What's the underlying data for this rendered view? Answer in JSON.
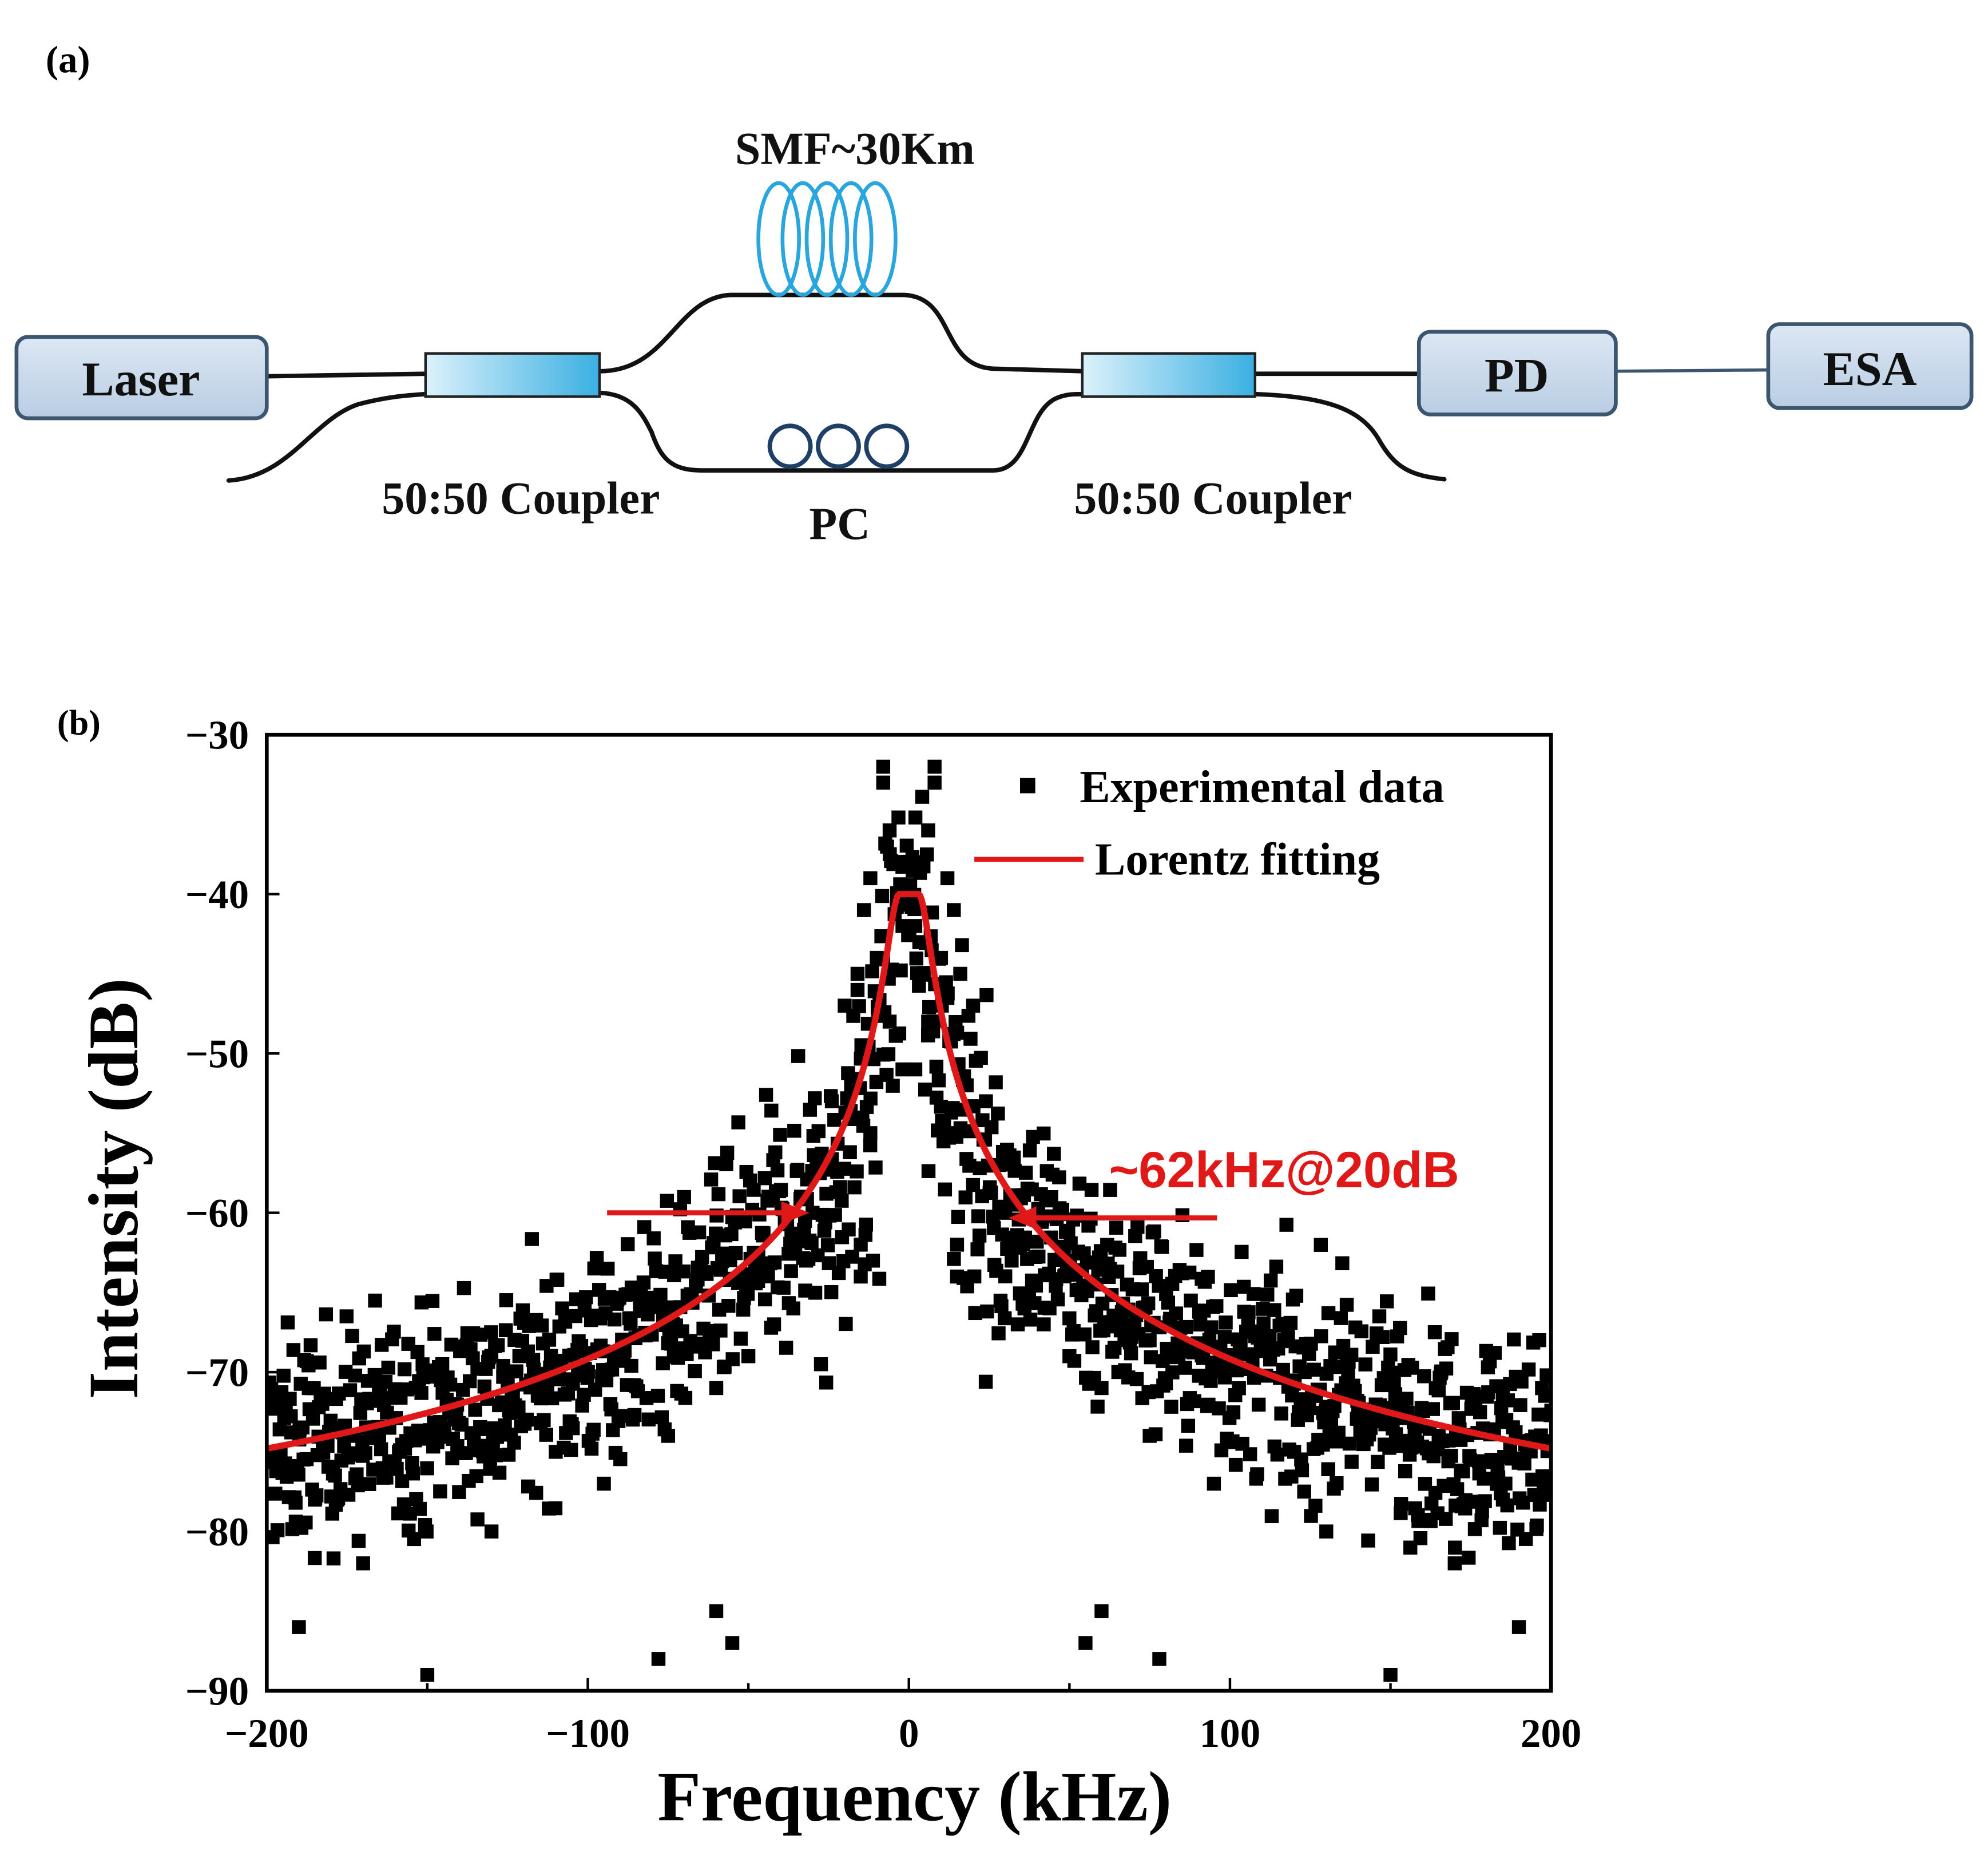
{
  "panel_a": {
    "label": "(a)",
    "laser": "Laser",
    "pd": "PD",
    "esa": "ESA",
    "smf": "SMF~30Km",
    "pc": "PC",
    "coupler_left": "50:50 Coupler",
    "coupler_right": "50:50 Coupler"
  },
  "panel_b": {
    "label": "(b)",
    "annotation": "~62kHz@20dB"
  },
  "colors": {
    "box_fill": "#c9d8ea",
    "box_stroke": "#3c5670",
    "coupler_dark": "#3ab0e2",
    "coupler_light": "#dcf1fb",
    "smf_coil": "#2aa6df",
    "pc_coil": "#1e3f66",
    "fit_line": "#e01818",
    "data_points": "#000000"
  },
  "chart_data": {
    "type": "scatter",
    "title": "",
    "xlabel": "Frequency (kHz)",
    "ylabel": "Intensity (dB)",
    "xlim": [
      -200,
      200
    ],
    "ylim": [
      -90,
      -30
    ],
    "xticks": [
      -200,
      -100,
      0,
      100,
      200
    ],
    "yticks": [
      -30,
      -40,
      -50,
      -60,
      -70,
      -80,
      -90
    ],
    "legend_position": "top-right",
    "series": [
      {
        "name": "Experimental data",
        "kind": "scatter",
        "points": [
          [
            -8,
            -32
          ],
          [
            -8,
            -33
          ],
          [
            8,
            -32
          ],
          [
            8,
            -33
          ],
          [
            -6,
            -36
          ],
          [
            6,
            -36
          ],
          [
            -4,
            -38
          ],
          [
            4,
            -38
          ],
          [
            -12,
            -39
          ],
          [
            12,
            -39
          ],
          [
            -14,
            -41
          ],
          [
            14,
            -41
          ],
          [
            -2,
            -42
          ],
          [
            2,
            -42
          ],
          [
            -10,
            -44
          ],
          [
            10,
            -44
          ],
          [
            -16,
            -45
          ],
          [
            16,
            -45
          ],
          [
            -20,
            -47
          ],
          [
            20,
            -47
          ],
          [
            -6,
            -48
          ],
          [
            6,
            -48
          ],
          [
            -2,
            -51
          ],
          [
            2,
            -51
          ],
          [
            -18,
            -52
          ],
          [
            18,
            -52
          ],
          [
            -24,
            -53
          ],
          [
            24,
            -53
          ],
          [
            -12,
            -55
          ],
          [
            12,
            -55
          ],
          [
            -28,
            -57
          ],
          [
            28,
            -57
          ],
          [
            -30,
            -60
          ],
          [
            30,
            -60
          ],
          [
            -15,
            -62
          ],
          [
            15,
            -62
          ],
          [
            -32,
            -63
          ],
          [
            32,
            -63
          ],
          [
            -15,
            -64
          ],
          [
            15,
            -64
          ],
          [
            -36,
            -66
          ],
          [
            36,
            -66
          ],
          [
            -42,
            -67
          ],
          [
            42,
            -67
          ],
          [
            -50,
            -69
          ],
          [
            50,
            -69
          ],
          [
            -60,
            -71
          ],
          [
            60,
            -71
          ],
          [
            -75,
            -74
          ],
          [
            75,
            -74
          ],
          [
            -95,
            -77
          ],
          [
            95,
            -77
          ],
          [
            -130,
            -80
          ],
          [
            130,
            -80
          ],
          [
            -170,
            -82
          ],
          [
            170,
            -82
          ],
          [
            -165,
            -74
          ],
          [
            165,
            -74
          ],
          [
            -110,
            -75
          ],
          [
            120,
            -75
          ],
          [
            -60,
            -85
          ],
          [
            60,
            -85
          ],
          [
            -55,
            -87
          ],
          [
            55,
            -87
          ],
          [
            -78,
            -88
          ],
          [
            78,
            -88
          ],
          [
            -150,
            -89
          ],
          [
            150,
            -89
          ],
          [
            -190,
            -86
          ],
          [
            190,
            -86
          ],
          [
            -185,
            -78
          ],
          [
            185,
            -78
          ]
        ]
      },
      {
        "name": "Lorentz fitting",
        "kind": "line",
        "model": "lorentzian",
        "peak_db": -40,
        "baseline_db": -83,
        "fwhm_khz": 6.61,
        "flat_top_khz": 3
      }
    ],
    "annotations": [
      {
        "text": "~62kHz@20dB",
        "y": -60,
        "x_left": -31,
        "x_right": 31
      }
    ]
  }
}
